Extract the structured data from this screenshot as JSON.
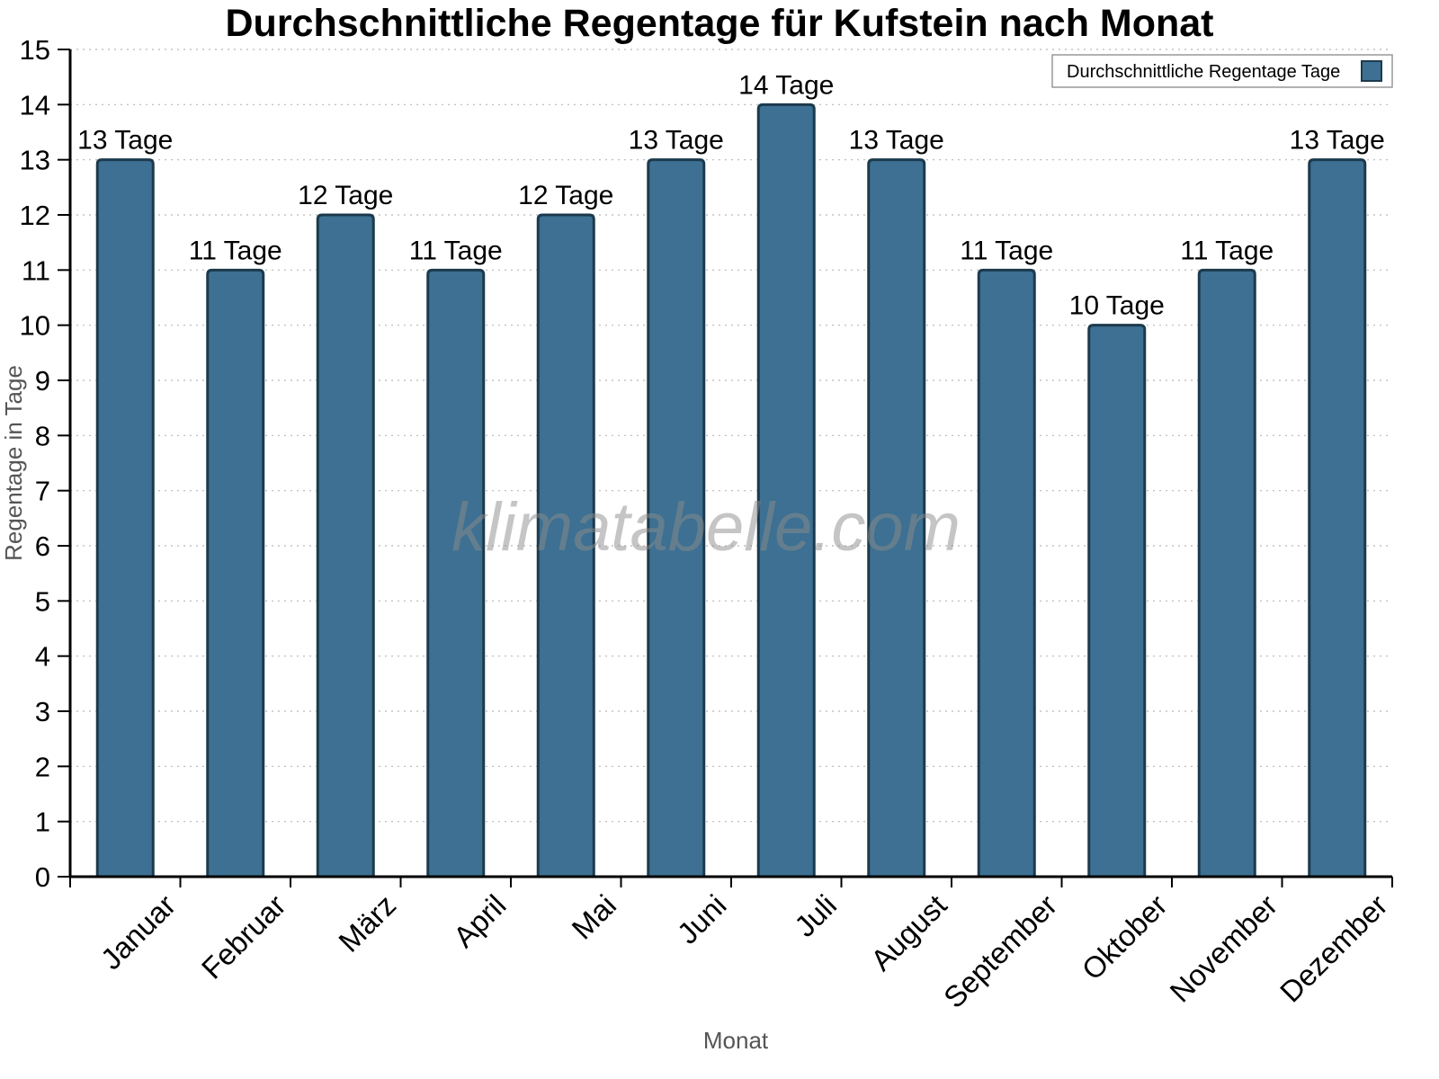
{
  "watermark": "klimatabelle.com",
  "chart_data": {
    "type": "bar",
    "title": "Durchschnittliche Regentage für Kufstein nach Monat",
    "xlabel": "Monat",
    "ylabel": "Regentage in Tage",
    "categories": [
      "Januar",
      "Februar",
      "März",
      "April",
      "Mai",
      "Juni",
      "Juli",
      "August",
      "September",
      "Oktober",
      "November",
      "Dezember"
    ],
    "values": [
      13,
      11,
      12,
      11,
      12,
      13,
      14,
      13,
      11,
      10,
      11,
      13
    ],
    "bar_labels": [
      "13 Tage",
      "11 Tage",
      "12 Tage",
      "11 Tage",
      "12 Tage",
      "13 Tage",
      "14 Tage",
      "13 Tage",
      "11 Tage",
      "10 Tage",
      "11 Tage",
      "13 Tage"
    ],
    "ylim": [
      0,
      15
    ],
    "ytick_step": 1,
    "grid": true,
    "legend": {
      "label": "Durchschnittliche Regentage Tage",
      "position": "top-right"
    },
    "colors": {
      "bar_fill": "#3D7092",
      "bar_stroke": "#1C3A4D",
      "grid": "#b8b8b8",
      "axis": "#000000",
      "axis_title": "#555555",
      "watermark": "#8c8c8c"
    }
  }
}
